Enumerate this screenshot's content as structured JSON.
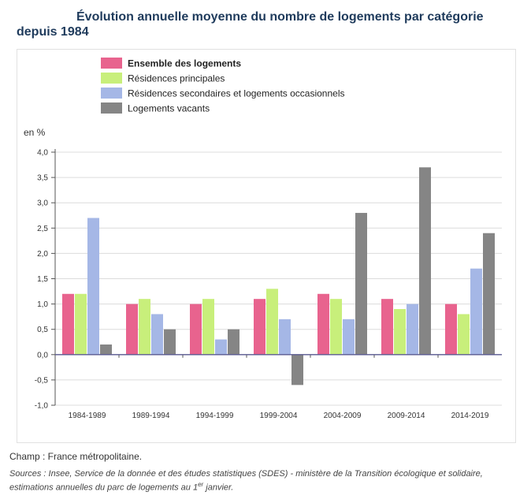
{
  "header": {
    "title_line1": "Évolution annuelle moyenne du nombre de logements par catégorie",
    "title_line2": "depuis 1984"
  },
  "chart_data": {
    "type": "bar",
    "title": "Évolution annuelle moyenne du nombre de logements par catégorie depuis 1984",
    "ylabel": "en %",
    "ylim": [
      -1.0,
      4.0
    ],
    "yticks": [
      "-1,0",
      "-0,5",
      "0,0",
      "0,5",
      "1,0",
      "1,5",
      "2,0",
      "2,5",
      "3,0",
      "3,5",
      "4,0"
    ],
    "ytick_values": [
      -1.0,
      -0.5,
      0.0,
      0.5,
      1.0,
      1.5,
      2.0,
      2.5,
      3.0,
      3.5,
      4.0
    ],
    "categories": [
      "1984-1989",
      "1989-1994",
      "1994-1999",
      "1999-2004",
      "2004-2009",
      "2009-2014",
      "2014-2019"
    ],
    "series": [
      {
        "name": "Ensemble des logements",
        "color": "#e8638e",
        "values": [
          1.2,
          1.0,
          1.0,
          1.1,
          1.2,
          1.1,
          1.0
        ]
      },
      {
        "name": "Résidences principales",
        "color": "#c8ef7b",
        "values": [
          1.2,
          1.1,
          1.1,
          1.3,
          1.1,
          0.9,
          0.8
        ]
      },
      {
        "name": "Résidences secondaires et logements occasionnels",
        "color": "#a5b7e6",
        "values": [
          2.7,
          0.8,
          0.3,
          0.7,
          0.7,
          1.0,
          1.7
        ]
      },
      {
        "name": "Logements vacants",
        "color": "#858585",
        "values": [
          0.2,
          0.5,
          0.5,
          -0.6,
          2.8,
          3.7,
          2.4
        ]
      }
    ],
    "grid": true,
    "legend_position": "top"
  },
  "footer": {
    "champ": "Champ : France métropolitaine.",
    "sources_line1": "Sources : Insee, Service de la donnée et des études statistiques (SDES) - ministère de la Transition écologique et solidaire,",
    "sources_line2_prefix": "estimations annuelles du parc de logements au 1",
    "sources_line2_sup": "er",
    "sources_line2_suffix": " janvier."
  }
}
